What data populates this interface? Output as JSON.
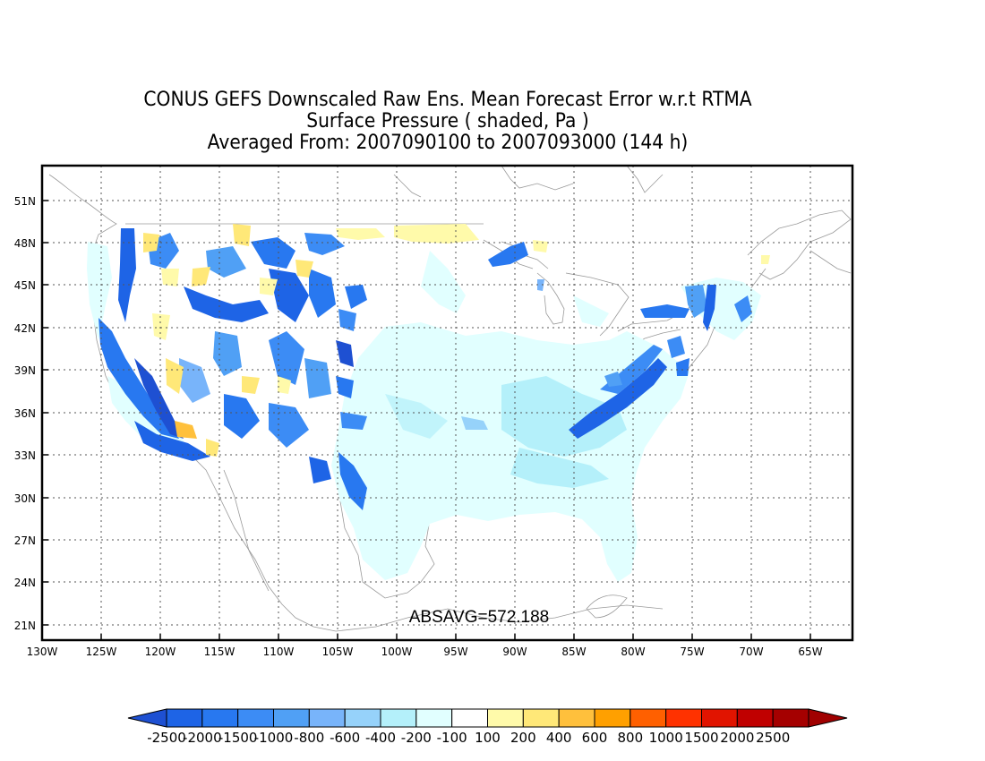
{
  "title": {
    "line1": "CONUS GEFS Downscaled Raw Ens. Mean Forecast Error w.r.t RTMA",
    "line2": "Surface Pressure ( shaded, Pa )",
    "line3": "Averaged From: 2007090100 to 2007093000 (144 h)"
  },
  "annotation": "ABSAVG=572.188",
  "lat_labels": [
    "51N",
    "48N",
    "45N",
    "42N",
    "39N",
    "36N",
    "33N",
    "30N",
    "27N",
    "24N",
    "21N"
  ],
  "lon_labels": [
    "130W",
    "125W",
    "120W",
    "115W",
    "110W",
    "105W",
    "100W",
    "95W",
    "90W",
    "85W",
    "80W",
    "75W",
    "70W",
    "65W"
  ],
  "colorbar": {
    "labels": [
      "-2500",
      "-2000",
      "-1500",
      "-1000",
      "-800",
      "-600",
      "-400",
      "-200",
      "-100",
      "100",
      "200",
      "400",
      "600",
      "800",
      "1000",
      "1500",
      "2000",
      "2500"
    ],
    "colors": [
      "#1e64e6",
      "#2878f0",
      "#3c8cf5",
      "#50a0f5",
      "#78b4fa",
      "#96d2fa",
      "#b4f0fa",
      "#e1ffff",
      "#ffffff",
      "#fffaaa",
      "#ffe878",
      "#ffc03c",
      "#ffa000",
      "#ff6000",
      "#ff3200",
      "#e11400",
      "#c00000",
      "#a50000"
    ],
    "low_color": "#1e50d2",
    "high_color": "#a00000"
  }
}
